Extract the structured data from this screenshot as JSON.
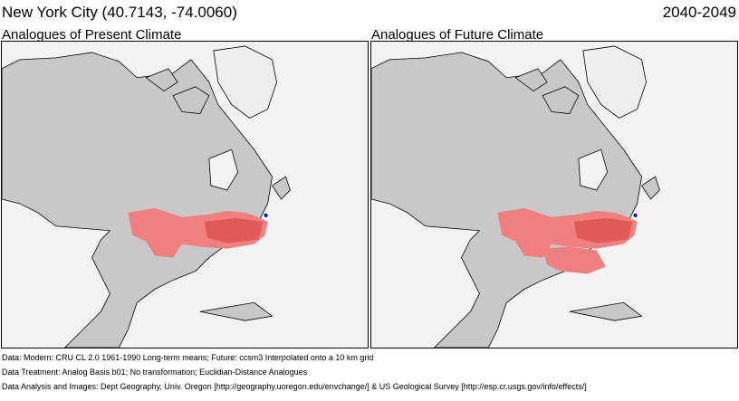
{
  "header": {
    "location": "New York City  (40.7143, -74.0060)",
    "period": "2040-2049"
  },
  "panels": [
    {
      "title": "Analogues of Present Climate"
    },
    {
      "title": "Analogues of Future Climate"
    }
  ],
  "footer": {
    "data": "Data:  Modern: CRU CL 2.0 1961-1990 Long-term means; Future: ccsm3 Interpolated onto a 10 km grid",
    "treatment": "Data Treatment:  Analog Basis b01; No transformation; Euclidian-Distance Analogues",
    "analysis": "Data Analysis and Images:  Dept Geography, Univ. Oregon [http://geography.uoregon.edu/envchange/] & US Geological Survey [http://esp.cr.usgs.gov/info/effects/]"
  },
  "colors": {
    "ocean": "#f2f2f2",
    "land": "#c8c8c8",
    "ice": "#eeeeee",
    "analog_light": "#f08080",
    "analog_dark": "#e05a5a",
    "target_marker": "#0000cc"
  }
}
